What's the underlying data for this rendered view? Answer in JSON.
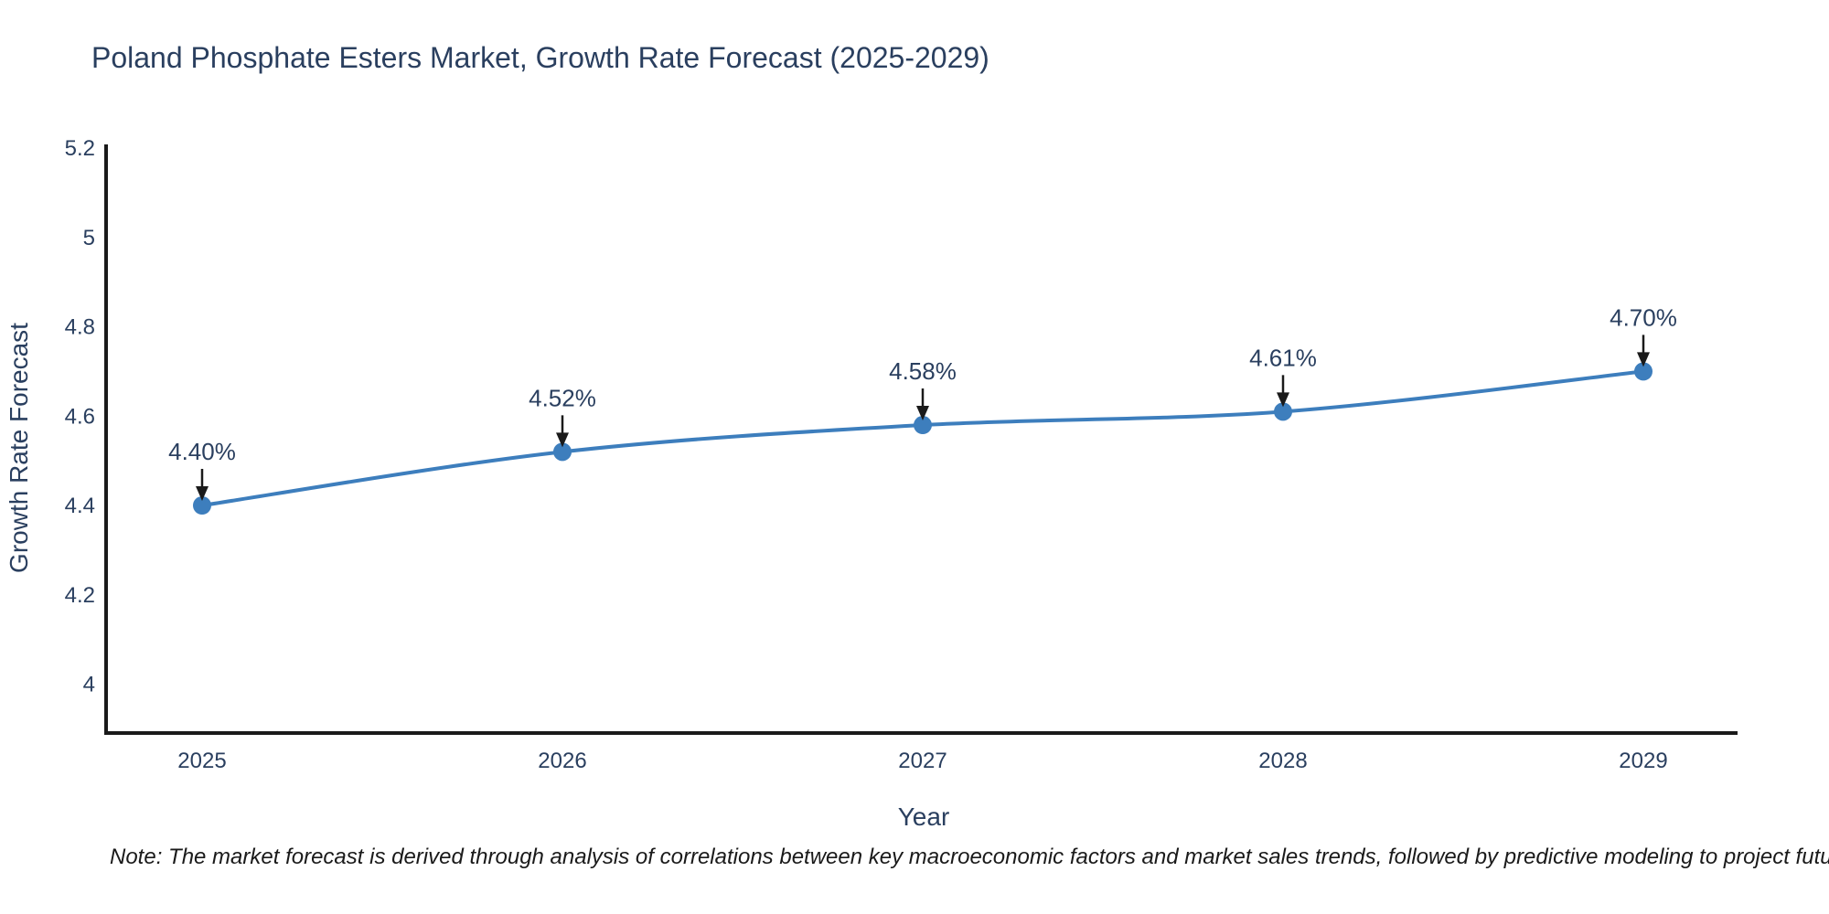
{
  "title": "Poland Phosphate Esters Market, Growth Rate Forecast (2025-2029)",
  "note": {
    "text": "Note: The market forecast is derived through analysis of correlations between key macroeconomic factors and market sales trends, followed by predictive modeling to project future sales"
  },
  "chart_data": {
    "type": "line",
    "title": "Poland Phosphate Esters Market, Growth Rate Forecast (2025-2029)",
    "xlabel": "Year",
    "ylabel": "Growth Rate Forecast",
    "x": [
      2025,
      2026,
      2027,
      2028,
      2029
    ],
    "x_tick_labels": [
      "2025",
      "2026",
      "2027",
      "2028",
      "2029"
    ],
    "series": [
      {
        "name": "Growth Rate Forecast",
        "values": [
          4.4,
          4.52,
          4.58,
          4.61,
          4.7
        ]
      }
    ],
    "point_labels": [
      "4.40%",
      "4.52%",
      "4.58%",
      "4.61%",
      "4.70%"
    ],
    "yticks": [
      4,
      4.2,
      4.4,
      4.6,
      4.8,
      5,
      5.2
    ],
    "ytick_labels": [
      "4",
      "4.2",
      "4.4",
      "4.6",
      "4.8",
      "5",
      "5.2"
    ],
    "ylim": [
      3.9,
      5.2
    ],
    "grid": false,
    "legend": "none",
    "line_shape": "spline",
    "colors": {
      "line": "#3d7ebd",
      "marker": "#3d7ebd",
      "axis_line": "#1a1a1a",
      "text": "#2a3f5f",
      "annotation_arrow": "#1a1a1a",
      "note_text": "#1a1a1a",
      "background": "#ffffff"
    }
  }
}
